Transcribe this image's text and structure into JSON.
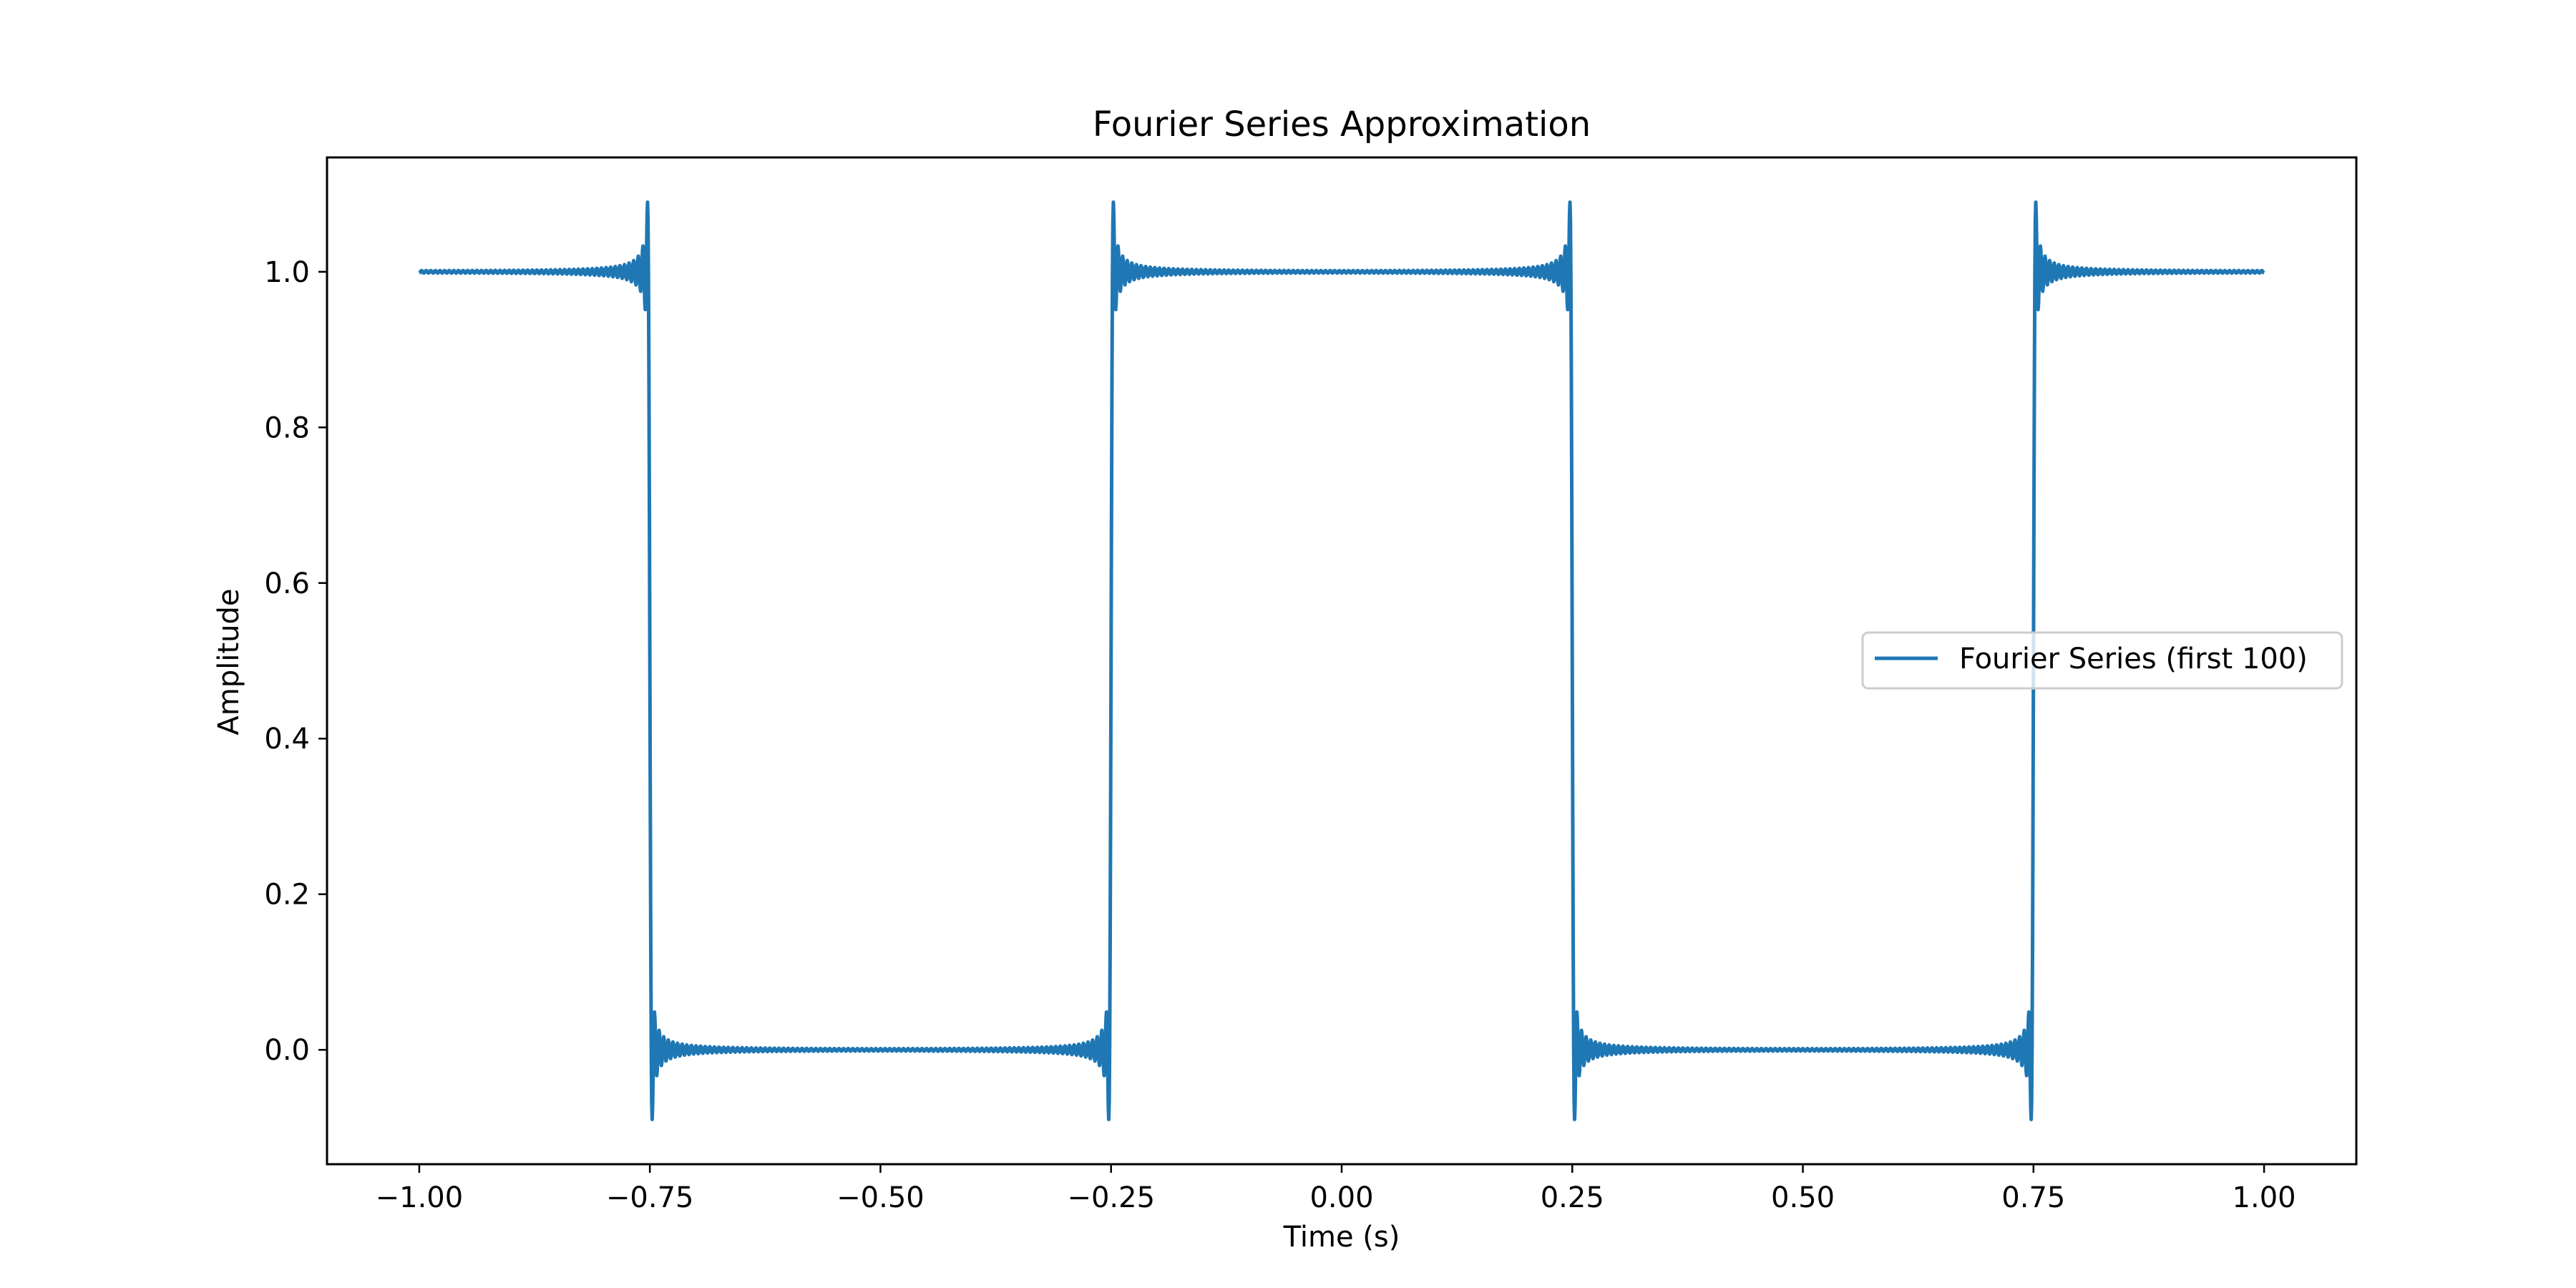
{
  "chart_data": {
    "type": "line",
    "title": "Fourier Series Approximation",
    "xlabel": "Time (s)",
    "ylabel": "Amplitude",
    "xlim": [
      -1.1,
      1.1
    ],
    "ylim": [
      -0.147,
      1.147
    ],
    "x_ticks": [
      -1.0,
      -0.75,
      -0.5,
      -0.25,
      0.0,
      0.25,
      0.5,
      0.75,
      1.0
    ],
    "x_tick_labels": [
      "−1.00",
      "−0.75",
      "−0.50",
      "−0.25",
      "0.00",
      "0.25",
      "0.50",
      "0.75",
      "1.00"
    ],
    "y_ticks": [
      0.0,
      0.2,
      0.4,
      0.6,
      0.8,
      1.0
    ],
    "y_tick_labels": [
      "0.0",
      "0.2",
      "0.4",
      "0.6",
      "0.8",
      "1.0"
    ],
    "grid": false,
    "legend_position": "center-right",
    "series": [
      {
        "name": "Fourier Series (first 100)",
        "color": "#1f77b4",
        "function": "square wave, period 1, high (1.0) on |t mod 1| < 0.25, low (0.0) otherwise, Fourier partial sum of first 100 odd harmonics",
        "x_range": [
          -1.0,
          1.0
        ]
      }
    ]
  }
}
